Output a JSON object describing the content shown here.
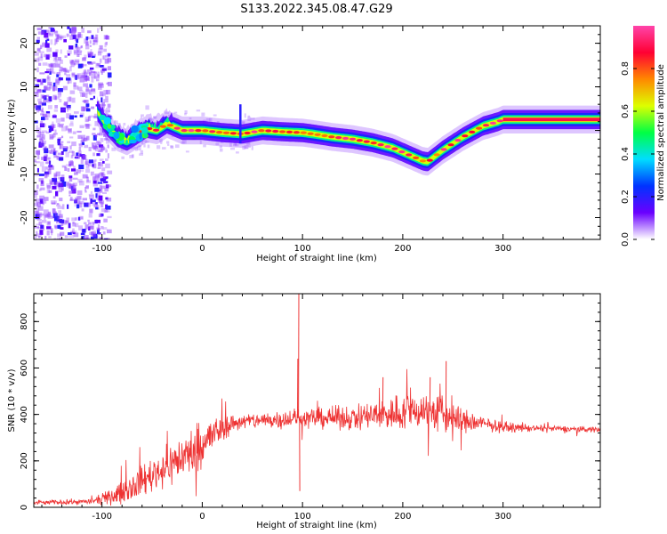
{
  "title": "S133.2022.345.08.47.G29",
  "chart_data": [
    {
      "type": "heatmap",
      "panel": "spectrogram",
      "xlabel": "Height of straight line (km)",
      "ylabel": "Frequency (Hz)",
      "xlim": [
        -168,
        397
      ],
      "ylim": [
        -25,
        24
      ],
      "xticks": [
        -100,
        0,
        100,
        200,
        300
      ],
      "yticks": [
        -20,
        -10,
        0,
        10,
        20
      ],
      "colorbar": {
        "label": "Normalized spectral amplitude",
        "ticks": [
          "0.0",
          "0.2",
          "0.4",
          "0.6",
          "0.8"
        ],
        "range": [
          0,
          1
        ],
        "colormap": [
          "#ffffff",
          "#6a00ff",
          "#0033ff",
          "#00ddff",
          "#00ff44",
          "#ddff00",
          "#ff8800",
          "#ff0033",
          "#ff44aa"
        ]
      },
      "noise_region_x": [
        -168,
        -100
      ],
      "ridge": {
        "x": [
          -105,
          -95,
          -85,
          -75,
          -65,
          -55,
          -45,
          -35,
          -20,
          0,
          20,
          40,
          60,
          80,
          100,
          110,
          130,
          150,
          170,
          190,
          200,
          210,
          220,
          225,
          240,
          260,
          280,
          295,
          300,
          330,
          360,
          397
        ],
        "freq": [
          4.5,
          1.0,
          -1.5,
          -2.5,
          -1.0,
          0.5,
          0.0,
          1.5,
          0.0,
          0.0,
          -0.5,
          -0.8,
          0.0,
          -0.3,
          -0.5,
          -0.8,
          -1.5,
          -2.0,
          -2.8,
          -4.0,
          -5.0,
          -6.0,
          -7.0,
          -7.2,
          -4.5,
          -1.5,
          1.0,
          2.0,
          2.5,
          2.5,
          2.5,
          2.5
        ]
      },
      "spike_x": 38
    },
    {
      "type": "line",
      "panel": "snr",
      "xlabel": "Height of straight line (km)",
      "ylabel": "SNR (10 * v/v)",
      "xlim": [
        -168,
        397
      ],
      "ylim": [
        0,
        920
      ],
      "xticks": [
        -100,
        0,
        100,
        200,
        300
      ],
      "yticks": [
        0,
        200,
        400,
        600,
        800
      ],
      "color": "#ee3333",
      "envelope": {
        "x": [
          -168,
          -110,
          -90,
          -70,
          -50,
          -30,
          -10,
          0,
          10,
          20,
          30,
          40,
          60,
          80,
          100,
          120,
          140,
          160,
          180,
          200,
          220,
          240,
          260,
          280,
          300,
          330,
          360,
          397
        ],
        "mean": [
          20,
          25,
          45,
          90,
          140,
          190,
          240,
          270,
          310,
          340,
          360,
          370,
          375,
          380,
          385,
          385,
          385,
          390,
          400,
          410,
          420,
          400,
          370,
          360,
          345,
          340,
          338,
          335
        ],
        "spread": [
          10,
          15,
          40,
          70,
          90,
          110,
          120,
          120,
          100,
          70,
          50,
          40,
          45,
          50,
          50,
          55,
          60,
          70,
          90,
          100,
          100,
          110,
          70,
          40,
          25,
          18,
          15,
          15
        ]
      },
      "spikes": [
        {
          "x": 96,
          "value": 920
        },
        {
          "x": 95,
          "value": 640
        },
        {
          "x": 97,
          "value": 70
        },
        {
          "x": 243,
          "value": 630
        },
        {
          "x": 227,
          "value": 560
        },
        {
          "x": 180,
          "value": 560
        }
      ]
    }
  ]
}
